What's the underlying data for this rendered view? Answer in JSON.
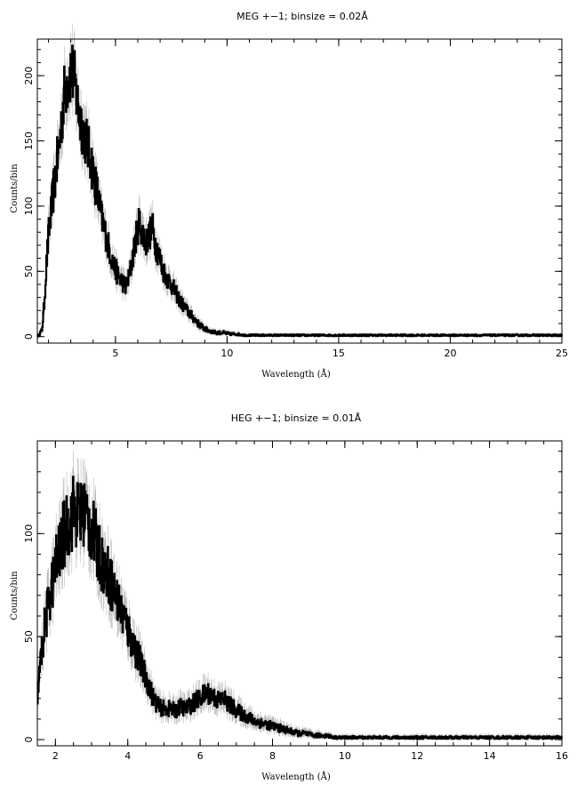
{
  "chart_data": [
    {
      "type": "line",
      "title": "MEG +−1; binsize = 0.02Å",
      "xlabel": "Wavelength (Å)",
      "ylabel": "Counts/bin",
      "xlim": [
        1.5,
        25
      ],
      "ylim": [
        -5,
        228
      ],
      "xticks": [
        5,
        10,
        15,
        20,
        25
      ],
      "yticks": [
        0,
        50,
        100,
        150,
        200
      ],
      "xtick_labels": [
        "5",
        "10",
        "15",
        "20",
        "25"
      ],
      "ytick_labels": [
        "0",
        "50",
        "100",
        "150",
        "200"
      ],
      "grid": false,
      "series": [
        {
          "x": [
            1.5,
            1.7,
            1.8,
            1.9,
            2.0,
            2.1,
            2.2,
            2.35,
            2.5,
            2.6,
            2.7,
            2.8,
            2.9,
            3.0,
            3.1,
            3.2,
            3.3,
            3.45,
            3.6,
            3.75,
            3.9,
            4.05,
            4.2,
            4.35,
            4.5,
            4.7,
            4.9,
            5.1,
            5.3,
            5.45,
            5.6,
            5.75,
            5.9,
            6.05,
            6.2,
            6.35,
            6.5,
            6.65,
            6.8,
            6.95,
            7.1,
            7.3,
            7.5,
            7.7,
            7.9,
            8.1,
            8.3,
            8.5,
            8.7,
            8.9,
            9.1,
            9.3,
            9.5,
            9.8,
            10.1,
            10.4,
            10.8,
            11.2,
            12.0,
            13.0,
            15.0,
            18.0,
            21.0,
            25.0
          ],
          "y": [
            0,
            5,
            25,
            55,
            80,
            95,
            110,
            130,
            150,
            170,
            185,
            195,
            200,
            205,
            200,
            190,
            178,
            165,
            155,
            145,
            135,
            120,
            108,
            92,
            82,
            68,
            55,
            47,
            42,
            38,
            45,
            60,
            75,
            88,
            80,
            72,
            78,
            83,
            70,
            62,
            52,
            45,
            40,
            33,
            27,
            22,
            18,
            14,
            10,
            7,
            5,
            4,
            3,
            3,
            2,
            2,
            1,
            1,
            1,
            1,
            1,
            1,
            1,
            1
          ]
        }
      ]
    },
    {
      "type": "line",
      "title": "HEG +−1; binsize = 0.01Å",
      "xlabel": "Wavelength (Å)",
      "ylabel": "Counts/bin",
      "xlim": [
        1.5,
        16
      ],
      "ylim": [
        -3,
        145
      ],
      "xticks": [
        2,
        4,
        6,
        8,
        10,
        12,
        14,
        16
      ],
      "yticks": [
        0,
        50,
        100
      ],
      "xtick_labels": [
        "2",
        "4",
        "6",
        "8",
        "10",
        "12",
        "14",
        "16"
      ],
      "ytick_labels": [
        "0",
        "50",
        "100"
      ],
      "grid": false,
      "series": [
        {
          "x": [
            1.5,
            1.6,
            1.7,
            1.8,
            1.9,
            2.0,
            2.1,
            2.2,
            2.3,
            2.4,
            2.5,
            2.6,
            2.7,
            2.8,
            2.9,
            3.0,
            3.1,
            3.2,
            3.35,
            3.5,
            3.65,
            3.8,
            3.95,
            4.1,
            4.25,
            4.4,
            4.55,
            4.7,
            4.85,
            5.0,
            5.15,
            5.3,
            5.45,
            5.6,
            5.75,
            5.9,
            6.05,
            6.2,
            6.35,
            6.5,
            6.65,
            6.8,
            6.95,
            7.1,
            7.3,
            7.5,
            7.7,
            7.9,
            8.1,
            8.3,
            8.5,
            8.7,
            8.9,
            9.1,
            9.3,
            9.5,
            9.7,
            10.0,
            10.3,
            10.6,
            11.0,
            12.0,
            13.0,
            14.0,
            16.0
          ],
          "y": [
            22,
            40,
            55,
            65,
            75,
            85,
            90,
            98,
            103,
            107,
            112,
            110,
            108,
            112,
            106,
            102,
            96,
            90,
            84,
            78,
            70,
            63,
            56,
            48,
            42,
            34,
            28,
            20,
            16,
            15,
            15,
            14,
            16,
            15,
            17,
            19,
            21,
            23,
            21,
            19,
            20,
            17,
            15,
            13,
            11,
            9,
            8,
            7,
            6,
            5,
            4,
            3,
            3,
            2,
            2,
            2,
            1,
            1,
            1,
            1,
            1,
            1,
            1,
            1,
            1
          ]
        }
      ]
    }
  ]
}
